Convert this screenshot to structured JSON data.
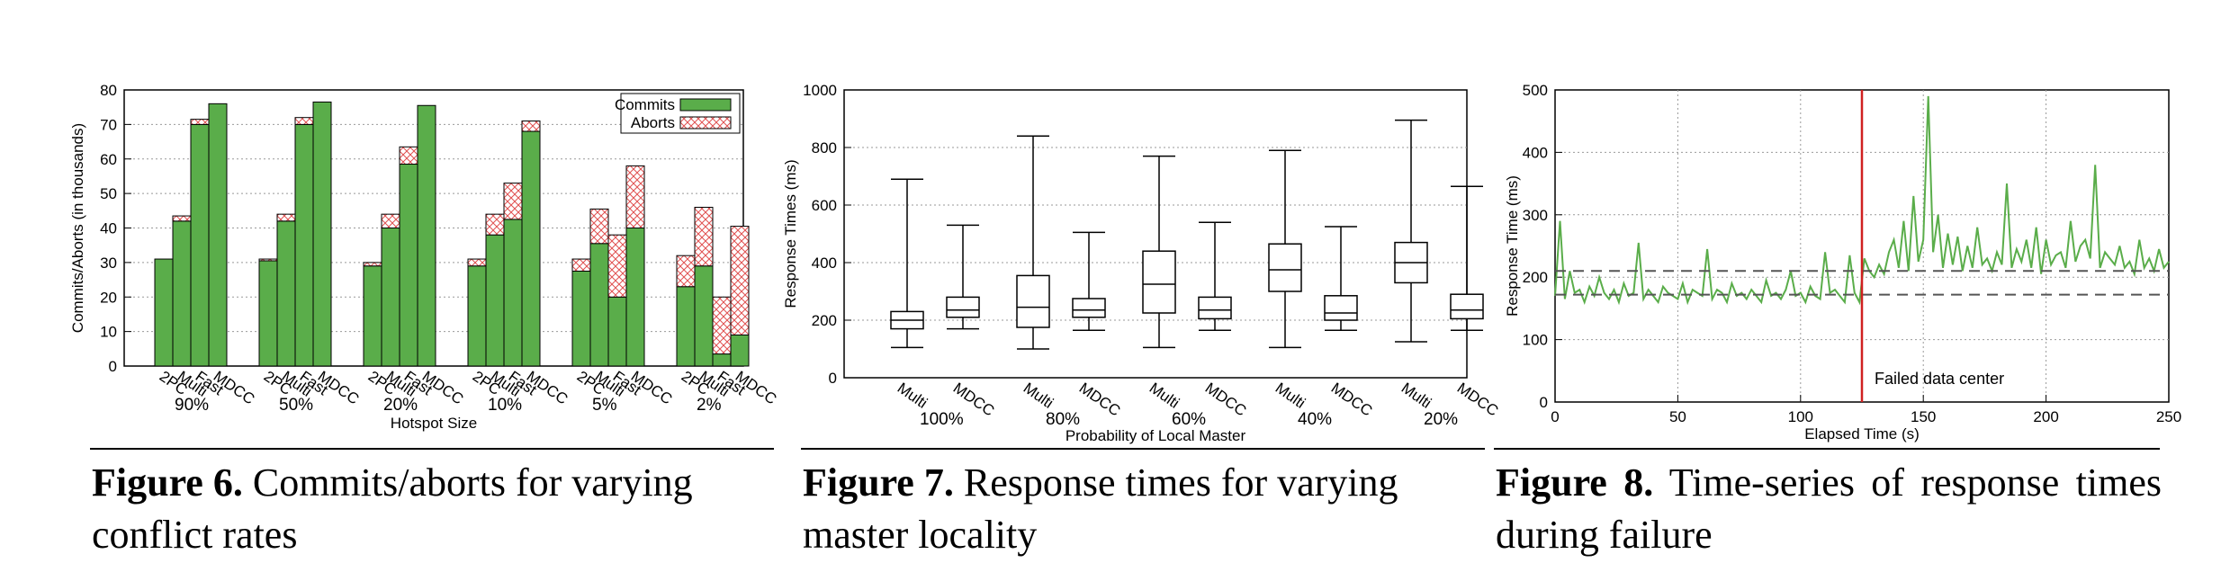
{
  "figures": [
    {
      "caption_label": "Figure 6.",
      "caption_text": "Commits/aborts for varying conflict rates"
    },
    {
      "caption_label": "Figure 7.",
      "caption_text": "Response times for varying master locality"
    },
    {
      "caption_label": "Figure 8.",
      "caption_text": "Time-series of response times during failure"
    }
  ],
  "chart_data": [
    {
      "type": "bar",
      "stacked": true,
      "ylabel": "Commits/Aborts (in thousands)",
      "xlabel": "Hotspot Size",
      "ylim": [
        0,
        80
      ],
      "yticks": [
        0,
        10,
        20,
        30,
        40,
        50,
        60,
        70,
        80
      ],
      "grid": true,
      "legend_position": "top-right",
      "legend": [
        "Commits",
        "Aborts"
      ],
      "colors": {
        "commits": "#5aad4a",
        "aborts": "#e05050"
      },
      "protocols": [
        "2PC",
        "Multi",
        "Fast",
        "MDCC"
      ],
      "groups": [
        {
          "label": "90%",
          "commits": [
            31,
            42,
            70,
            76
          ],
          "aborts": [
            0,
            1.5,
            1.5,
            0
          ]
        },
        {
          "label": "50%",
          "commits": [
            30.5,
            42,
            70,
            76.5
          ],
          "aborts": [
            0.5,
            2,
            2,
            0
          ]
        },
        {
          "label": "20%",
          "commits": [
            29,
            40,
            58.5,
            75.5
          ],
          "aborts": [
            1,
            4,
            5,
            0
          ]
        },
        {
          "label": "10%",
          "commits": [
            29,
            38,
            42.5,
            68
          ],
          "aborts": [
            2,
            6,
            10.5,
            3
          ]
        },
        {
          "label": "5%",
          "commits": [
            27.5,
            35.5,
            20,
            40
          ],
          "aborts": [
            3.5,
            10,
            18,
            18
          ]
        },
        {
          "label": "2%",
          "commits": [
            23,
            29,
            3.5,
            9
          ],
          "aborts": [
            9,
            17,
            16.5,
            31.5
          ]
        }
      ]
    },
    {
      "type": "boxplot",
      "ylabel": "Response Times (ms)",
      "xlabel": "Probability of Local Master",
      "ylim": [
        0,
        1000
      ],
      "yticks": [
        0,
        200,
        400,
        600,
        800,
        1000
      ],
      "grid": true,
      "protocols": [
        "Multi",
        "MDCC"
      ],
      "groups": [
        {
          "label": "100%",
          "boxes": [
            {
              "min": 105,
              "q1": 170,
              "median": 200,
              "q3": 230,
              "max": 690
            },
            {
              "min": 170,
              "q1": 210,
              "median": 235,
              "q3": 280,
              "max": 530
            }
          ]
        },
        {
          "label": "80%",
          "boxes": [
            {
              "min": 100,
              "q1": 175,
              "median": 245,
              "q3": 355,
              "max": 840
            },
            {
              "min": 165,
              "q1": 210,
              "median": 235,
              "q3": 275,
              "max": 505
            }
          ]
        },
        {
          "label": "60%",
          "boxes": [
            {
              "min": 105,
              "q1": 225,
              "median": 325,
              "q3": 440,
              "max": 770
            },
            {
              "min": 165,
              "q1": 205,
              "median": 235,
              "q3": 280,
              "max": 540
            }
          ]
        },
        {
          "label": "40%",
          "boxes": [
            {
              "min": 105,
              "q1": 300,
              "median": 375,
              "q3": 465,
              "max": 790
            },
            {
              "min": 165,
              "q1": 200,
              "median": 225,
              "q3": 285,
              "max": 525
            }
          ]
        },
        {
          "label": "20%",
          "boxes": [
            {
              "min": 125,
              "q1": 330,
              "median": 400,
              "q3": 470,
              "max": 895
            },
            {
              "min": 165,
              "q1": 205,
              "median": 235,
              "q3": 290,
              "max": 665
            }
          ]
        }
      ]
    },
    {
      "type": "line",
      "ylabel": "Response Time (ms)",
      "xlabel": "Elapsed Time (s)",
      "xlim": [
        0,
        250
      ],
      "ylim": [
        0,
        500
      ],
      "xticks": [
        0,
        50,
        100,
        150,
        200,
        250
      ],
      "yticks": [
        0,
        100,
        200,
        300,
        400,
        500
      ],
      "grid": true,
      "series_color": "#5aad4a",
      "failure_time": 125,
      "failure_label": "Failed data center",
      "reference_lines": [
        172,
        210
      ],
      "series": [
        {
          "x": [
            0,
            2,
            4,
            6,
            8,
            10,
            12,
            14,
            16,
            18,
            20,
            22,
            24,
            26,
            28,
            30,
            32,
            34,
            36,
            38,
            40,
            42,
            44,
            46,
            48,
            50,
            52,
            54,
            56,
            58,
            60,
            62,
            64,
            66,
            68,
            70,
            72,
            74,
            76,
            78,
            80,
            82,
            84,
            86,
            88,
            90,
            92,
            94,
            96,
            98,
            100,
            102,
            104,
            106,
            108,
            110,
            112,
            114,
            116,
            118,
            120,
            122,
            124,
            126,
            128,
            130,
            132,
            134,
            136,
            138,
            140,
            142,
            144,
            146,
            148,
            150,
            152,
            154,
            156,
            158,
            160,
            162,
            164,
            166,
            168,
            170,
            172,
            174,
            176,
            178,
            180,
            182,
            184,
            186,
            188,
            190,
            192,
            194,
            196,
            198,
            200,
            202,
            204,
            206,
            208,
            210,
            212,
            214,
            216,
            218,
            220,
            222,
            224,
            226,
            228,
            230,
            232,
            234,
            236,
            238,
            240,
            242,
            244,
            246,
            248,
            250
          ],
          "y": [
            170,
            290,
            165,
            210,
            175,
            180,
            160,
            185,
            170,
            200,
            175,
            165,
            180,
            160,
            190,
            170,
            175,
            255,
            165,
            180,
            170,
            160,
            185,
            175,
            170,
            165,
            190,
            160,
            180,
            175,
            170,
            245,
            165,
            180,
            175,
            160,
            190,
            170,
            175,
            165,
            180,
            170,
            160,
            195,
            170,
            175,
            165,
            180,
            210,
            170,
            175,
            160,
            185,
            170,
            165,
            240,
            175,
            180,
            170,
            160,
            235,
            175,
            160,
            230,
            210,
            200,
            220,
            205,
            240,
            260,
            215,
            290,
            210,
            330,
            225,
            260,
            490,
            240,
            300,
            215,
            270,
            220,
            265,
            210,
            250,
            215,
            280,
            220,
            230,
            210,
            240,
            220,
            350,
            215,
            245,
            225,
            260,
            215,
            280,
            205,
            260,
            220,
            235,
            240,
            215,
            290,
            225,
            250,
            260,
            230,
            380,
            215,
            240,
            230,
            220,
            250,
            215,
            225,
            205,
            260,
            215,
            230,
            210,
            245,
            215,
            225
          ]
        }
      ]
    }
  ]
}
